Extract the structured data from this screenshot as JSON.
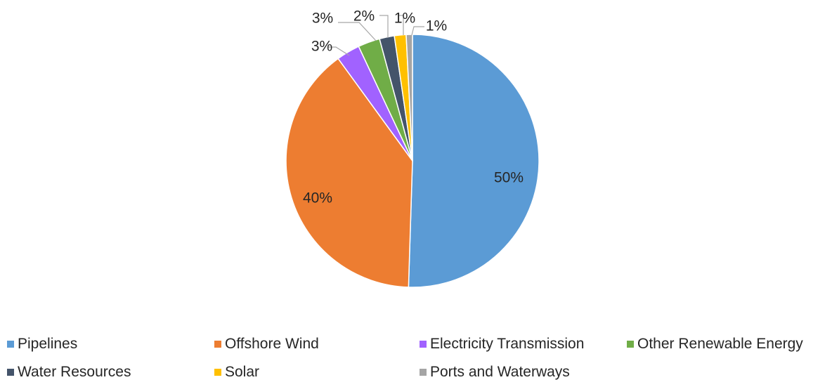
{
  "chart_data": {
    "type": "pie",
    "series": [
      {
        "name": "",
        "slices": [
          {
            "label": "Pipelines",
            "value": 50.5,
            "display": "50%",
            "color": "#5b9bd5"
          },
          {
            "label": "Offshore Wind",
            "value": 39.5,
            "display": "40%",
            "color": "#ed7d31"
          },
          {
            "label": "Electricity Transmission",
            "value": 3.0,
            "display": "3%",
            "color": "#a162ff"
          },
          {
            "label": "Other Renewable Energy",
            "value": 2.8,
            "display": "3%",
            "color": "#70ad47"
          },
          {
            "label": "Water Resources",
            "value": 1.9,
            "display": "2%",
            "color": "#44546a"
          },
          {
            "label": "Solar",
            "value": 1.5,
            "display": "1%",
            "color": "#ffc000"
          },
          {
            "label": "Ports and Waterways",
            "value": 0.8,
            "display": "1%",
            "color": "#a5a5a5"
          }
        ]
      }
    ],
    "legend_position": "bottom",
    "start_angle": "12 o'clock",
    "direction": "clockwise"
  },
  "legend": {
    "items": [
      {
        "label": "Pipelines",
        "color": "#5b9bd5"
      },
      {
        "label": "Offshore Wind",
        "color": "#ed7d31"
      },
      {
        "label": "Electricity Transmission",
        "color": "#a162ff"
      },
      {
        "label": "Other Renewable Energy",
        "color": "#70ad47"
      },
      {
        "label": "Water Resources",
        "color": "#44546a"
      },
      {
        "label": "Solar",
        "color": "#ffc000"
      },
      {
        "label": "Ports and Waterways",
        "color": "#a5a5a5"
      }
    ]
  }
}
